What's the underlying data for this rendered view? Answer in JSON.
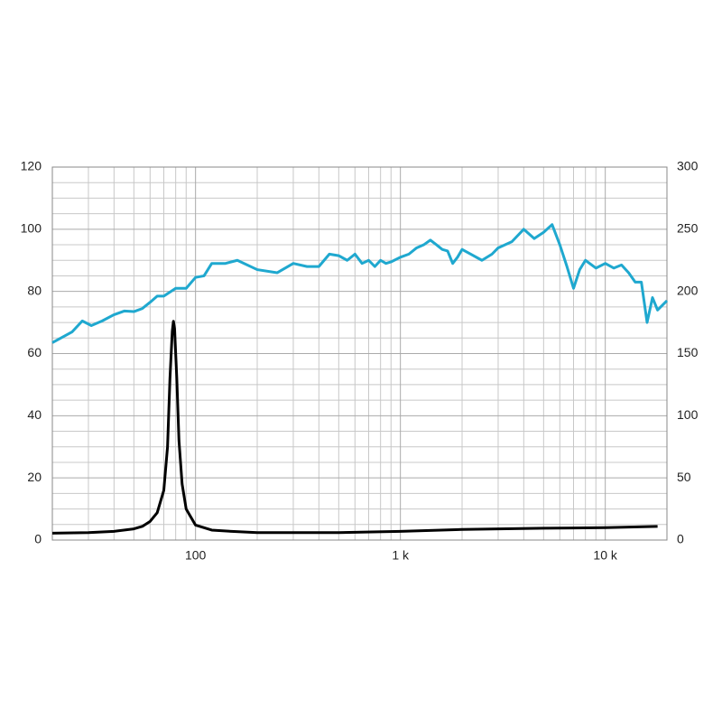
{
  "chart_data": {
    "type": "line",
    "xscale": "log",
    "xlim": [
      20,
      20000
    ],
    "ylim": [
      0,
      120
    ],
    "y2lim": [
      0,
      300
    ],
    "xticks": [
      100,
      {
        "value": 1000,
        "label": "1 k"
      },
      {
        "value": 10000,
        "label": "10 k"
      }
    ],
    "xminor_ticks": [
      30,
      40,
      50,
      60,
      70,
      80,
      90,
      200,
      300,
      400,
      500,
      600,
      700,
      800,
      900,
      2000,
      3000,
      4000,
      5000,
      6000,
      7000,
      8000,
      9000
    ],
    "yticks": [
      0,
      20,
      40,
      60,
      80,
      100,
      120
    ],
    "yminor_ticks": [
      5,
      10,
      15,
      25,
      30,
      35,
      45,
      50,
      55,
      65,
      70,
      75,
      85,
      90,
      95,
      105,
      110,
      115
    ],
    "y2ticks": [
      0,
      50,
      100,
      150,
      200,
      250,
      300
    ],
    "grid": true,
    "series": [
      {
        "color": "#1fa8cf",
        "x": [
          20,
          22,
          25,
          28,
          31,
          35,
          40,
          45,
          50,
          55,
          60,
          65,
          70,
          80,
          90,
          100,
          110,
          120,
          140,
          160,
          200,
          250,
          300,
          350,
          400,
          450,
          500,
          550,
          600,
          650,
          700,
          750,
          800,
          850,
          900,
          1000,
          1100,
          1200,
          1300,
          1400,
          1500,
          1600,
          1700,
          1800,
          1900,
          2000,
          2200,
          2500,
          2800,
          3000,
          3500,
          4000,
          4500,
          5000,
          5500,
          6000,
          6500,
          7000,
          7500,
          8000,
          9000,
          10000,
          11000,
          12000,
          13000,
          14000,
          15000,
          16000,
          17000,
          18000,
          20000
        ],
        "values": [
          63.5,
          65,
          67,
          70.5,
          69,
          70.5,
          72.5,
          73.7,
          73.5,
          74.5,
          76.5,
          78.5,
          78.5,
          81,
          81,
          84.5,
          85,
          89,
          89,
          90,
          87,
          86,
          89,
          88,
          88,
          92,
          91.5,
          90,
          92,
          89,
          90,
          88,
          90,
          89,
          89.5,
          91,
          92,
          94,
          95,
          96.5,
          95,
          93.5,
          93,
          89,
          91,
          93.5,
          92,
          90,
          92,
          94,
          96,
          100,
          97,
          99,
          101.5,
          95,
          88,
          81,
          87,
          90,
          87.5,
          89,
          87.5,
          88.5,
          86,
          83,
          83,
          70,
          78,
          74,
          77
        ]
      },
      {
        "color": "#000000",
        "axis": "y2",
        "x": [
          20,
          30,
          40,
          50,
          55,
          60,
          65,
          70,
          73,
          75,
          77,
          78,
          79,
          81,
          83,
          86,
          90,
          100,
          120,
          150,
          200,
          300,
          500,
          1000,
          2000,
          5000,
          10000,
          18000
        ],
        "values": [
          5.5,
          6,
          7,
          9,
          11,
          15,
          22,
          40,
          75,
          130,
          168,
          176,
          170,
          130,
          80,
          45,
          25,
          12,
          8,
          7,
          6,
          6,
          6,
          7,
          8.5,
          9.5,
          10,
          11
        ]
      }
    ]
  }
}
